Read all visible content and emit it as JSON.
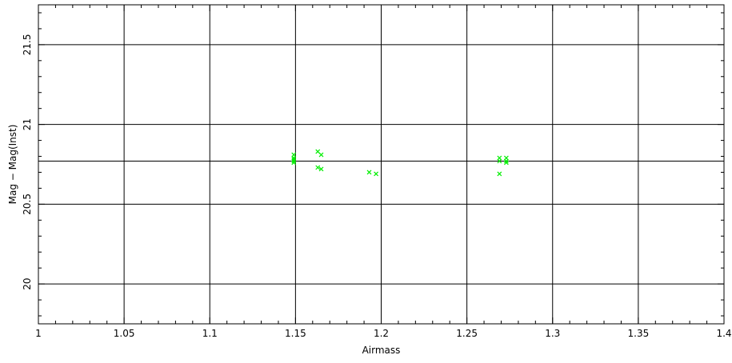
{
  "chart_data": {
    "type": "scatter",
    "title": "",
    "xlabel": "Airmass",
    "ylabel": "Mag  −  Mag(Inst)",
    "xlim": [
      1.0,
      1.4
    ],
    "ylim": [
      19.75,
      21.75
    ],
    "xticks": [
      1,
      1.05,
      1.1,
      1.15,
      1.2,
      1.25,
      1.3,
      1.35,
      1.4
    ],
    "xtick_labels": [
      "1",
      "1.05",
      "1.1",
      "1.15",
      "1.2",
      "1.25",
      "1.3",
      "1.35",
      "1.4"
    ],
    "yticks": [
      20,
      20.5,
      21,
      21.5
    ],
    "ytick_labels": [
      "20",
      "20.5",
      "21",
      "21.5"
    ],
    "fit_line_y": 20.77,
    "grid": true,
    "series": [
      {
        "marker": "x",
        "color": "#00ee00",
        "points": [
          [
            1.149,
            20.81
          ],
          [
            1.149,
            20.79
          ],
          [
            1.149,
            20.78
          ],
          [
            1.149,
            20.77
          ],
          [
            1.149,
            20.76
          ],
          [
            1.163,
            20.83
          ],
          [
            1.165,
            20.81
          ],
          [
            1.163,
            20.73
          ],
          [
            1.165,
            20.72
          ],
          [
            1.193,
            20.7
          ],
          [
            1.197,
            20.69
          ],
          [
            1.269,
            20.79
          ],
          [
            1.269,
            20.77
          ],
          [
            1.269,
            20.69
          ],
          [
            1.273,
            20.79
          ],
          [
            1.273,
            20.77
          ],
          [
            1.273,
            20.76
          ]
        ]
      }
    ]
  }
}
